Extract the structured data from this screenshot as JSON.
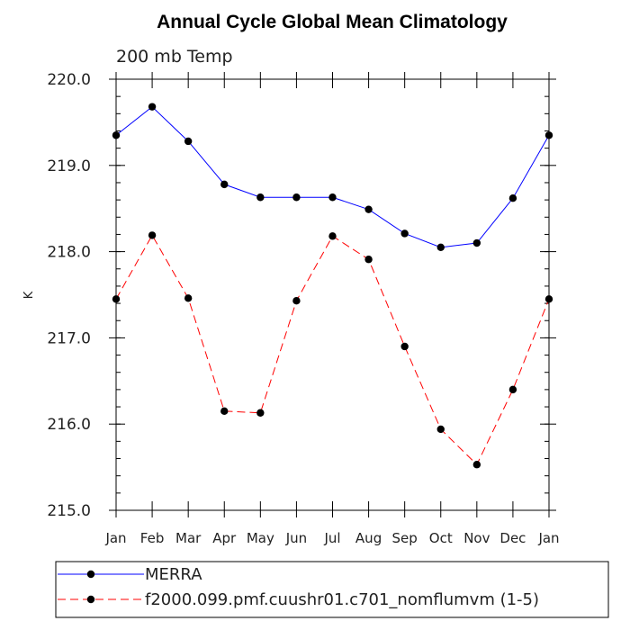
{
  "chart_data": {
    "type": "line",
    "title": "Annual Cycle Global Mean Climatology",
    "subtitle": "200 mb Temp",
    "xlabel": "",
    "ylabel": "K",
    "categories": [
      "Jan",
      "Feb",
      "Mar",
      "Apr",
      "May",
      "Jun",
      "Jul",
      "Aug",
      "Sep",
      "Oct",
      "Nov",
      "Dec",
      "Jan"
    ],
    "ylim": [
      215.0,
      220.0
    ],
    "yticks": [
      "215.0",
      "216.0",
      "217.0",
      "218.0",
      "219.0",
      "220.0"
    ],
    "grid": false,
    "legend_position": "bottom",
    "series": [
      {
        "name": "MERRA",
        "color": "#0000ff",
        "style": "solid",
        "values": [
          219.35,
          219.68,
          219.28,
          218.78,
          218.63,
          218.63,
          218.63,
          218.49,
          218.21,
          218.05,
          218.1,
          218.62,
          219.35
        ]
      },
      {
        "name": "f2000.099.pmf.cuushr01.c701_nomflumvm (1-5)",
        "color": "#ff0000",
        "style": "dashed",
        "values": [
          217.45,
          218.19,
          217.46,
          216.15,
          216.13,
          217.43,
          218.18,
          217.91,
          216.9,
          215.94,
          215.53,
          216.4,
          217.45
        ]
      }
    ]
  }
}
